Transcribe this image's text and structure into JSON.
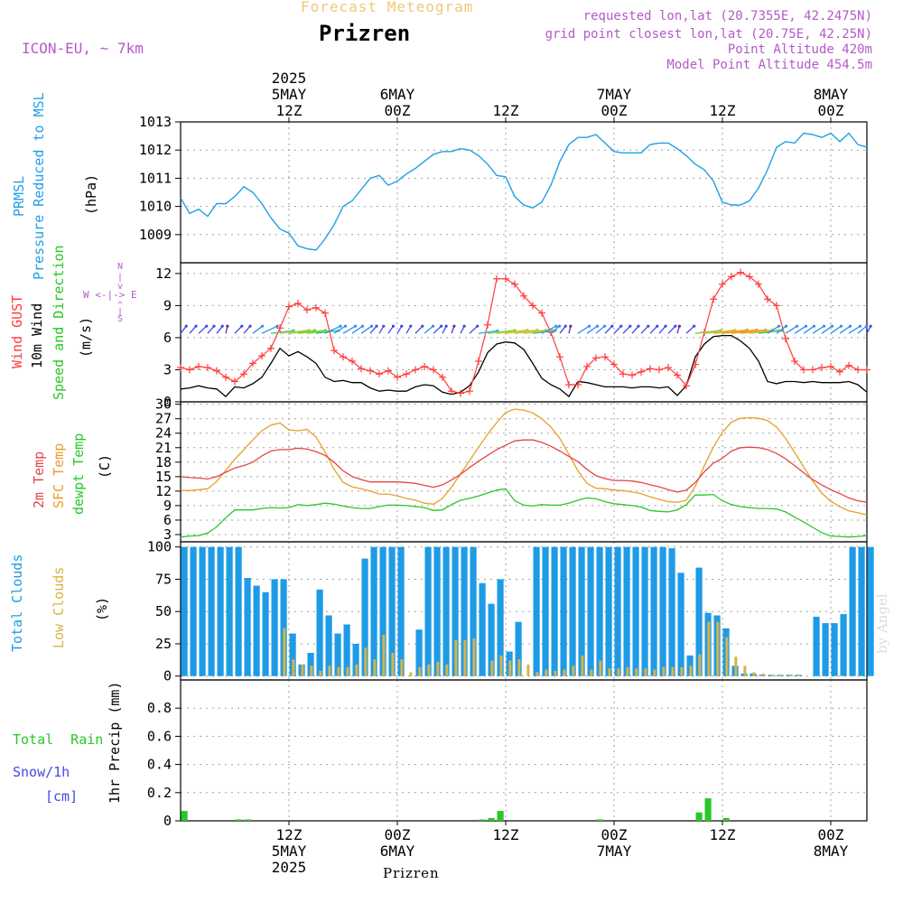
{
  "header": {
    "app_title": "Forecast Meteogram",
    "location": "Prizren",
    "model": "ICON-EU, ~ 7km",
    "requested": "requested lon,lat (20.7355E, 42.2475N)",
    "grid_point": "grid point closest lon,lat (20.75E, 42.25N)",
    "point_altitude": "Point Altitude 420m",
    "model_altitude": "Model Point Altitude 454.5m"
  },
  "footer": {
    "location": "Prizren",
    "watermark": "by Angel"
  },
  "time_axis": {
    "top_labels": [
      {
        "hour": 12,
        "lines": [
          "2025",
          "5MAY",
          "12Z"
        ]
      },
      {
        "hour": 24,
        "lines": [
          "6MAY",
          "00Z"
        ]
      },
      {
        "hour": 36,
        "lines": [
          "12Z"
        ]
      },
      {
        "hour": 48,
        "lines": [
          "7MAY",
          "00Z"
        ]
      },
      {
        "hour": 60,
        "lines": [
          "12Z"
        ]
      },
      {
        "hour": 72,
        "lines": [
          "8MAY",
          "00Z"
        ]
      }
    ],
    "bottom_labels": [
      {
        "hour": 12,
        "lines": [
          "12Z",
          "5MAY",
          "2025"
        ]
      },
      {
        "hour": 24,
        "lines": [
          "00Z",
          "6MAY"
        ]
      },
      {
        "hour": 36,
        "lines": [
          "12Z"
        ]
      },
      {
        "hour": 48,
        "lines": [
          "00Z",
          "7MAY"
        ]
      },
      {
        "hour": 60,
        "lines": [
          "12Z"
        ]
      },
      {
        "hour": 72,
        "lines": [
          "00Z",
          "8MAY"
        ]
      }
    ]
  },
  "panel_labels": {
    "pressure": {
      "name1": "PRMSL",
      "name2": "Pressure Reduced to MSL",
      "unit": "(hPa)"
    },
    "wind": {
      "gust": "Wind GUST",
      "wind10": "10m Wind",
      "speed_dir": "Speed and Direction",
      "unit": "(m/s)",
      "compass_n": "N",
      "compass_s": "S",
      "compass_we": "W <-|-> E"
    },
    "temp": {
      "t2m": "2m Temp",
      "sfc": "SFC Temp",
      "dewpt": "dewpt Temp",
      "unit": "(C)"
    },
    "clouds": {
      "total": "Total Clouds",
      "low": "Low Clouds",
      "unit": "(%)"
    },
    "precip": {
      "rain": "Total Rain",
      "snow": "Snow/1h",
      "snow_unit": "[cm]",
      "ylabel": "1hr Precip (mm)"
    }
  },
  "colors": {
    "pressure": "#1ea0e6",
    "gust": "#ff3c3c",
    "wind": "#000000",
    "t2m": "#e64646",
    "sfc": "#e6a028",
    "dewpt": "#28c828",
    "total_clouds": "#1e9be6",
    "low_clouds": "#d7b446",
    "rain": "#28c828",
    "snow": "#4646e6",
    "header_purple": "#b45ac8",
    "title_gold": "#f0c878"
  },
  "chart_data": [
    {
      "type": "line",
      "panel": "pressure",
      "ylim": [
        1008,
        1013
      ],
      "yticks": [
        1009,
        1010,
        1011,
        1012,
        1013
      ],
      "x_start_hour": 0,
      "x_end_hour": 76,
      "series": [
        {
          "values": [
            1010.3,
            1009.75,
            1009.9,
            1009.65,
            1010.1,
            1010.1,
            1010.35,
            1010.7,
            1010.5,
            1010.1,
            1009.6,
            1009.2,
            1009.05,
            1008.6,
            1008.5,
            1008.45,
            1008.85,
            1009.35,
            1010.0,
            1010.2,
            1010.6,
            1011.0,
            1011.1,
            1010.75,
            1010.9,
            1011.15,
            1011.35,
            1011.6,
            1011.85,
            1011.95,
            1011.95,
            1012.05,
            1012.0,
            1011.8,
            1011.5,
            1011.1,
            1011.05,
            1010.35,
            1010.05,
            1009.95,
            1010.15,
            1010.75,
            1011.6,
            1012.2,
            1012.45,
            1012.45,
            1012.55,
            1012.25,
            1011.95,
            1011.9,
            1011.9,
            1011.9,
            1012.2,
            1012.25,
            1012.25,
            1012.05,
            1011.8,
            1011.5,
            1011.3,
            1010.9,
            1010.15,
            1010.05,
            1010.05,
            1010.2,
            1010.65,
            1011.3,
            1012.1,
            1012.3,
            1012.25,
            1012.6,
            1012.55,
            1012.45,
            1012.6,
            1012.3,
            1012.6,
            1012.2,
            1012.1
          ]
        }
      ]
    },
    {
      "type": "line",
      "panel": "wind",
      "ylim": [
        0,
        13
      ],
      "yticks": [
        0,
        3,
        6,
        9,
        12
      ],
      "x_start_hour": 0,
      "x_end_hour": 76,
      "series": [
        {
          "name": "Wind GUST",
          "values": [
            3.2,
            3.0,
            3.3,
            3.2,
            2.9,
            2.3,
            1.9,
            2.6,
            3.6,
            4.3,
            5.0,
            6.9,
            8.9,
            9.2,
            8.6,
            8.8,
            8.3,
            4.8,
            4.2,
            3.8,
            3.1,
            2.9,
            2.6,
            2.9,
            2.3,
            2.6,
            3.0,
            3.3,
            3.0,
            2.3,
            1.0,
            0.8,
            1.0,
            3.8,
            7.2,
            11.5,
            11.5,
            11.0,
            9.9,
            9.0,
            8.3,
            6.5,
            4.2,
            1.6,
            1.6,
            3.3,
            4.1,
            4.2,
            3.5,
            2.6,
            2.5,
            2.8,
            3.1,
            3.0,
            3.2,
            2.5,
            1.5,
            3.5,
            6.5,
            9.6,
            11.0,
            11.7,
            12.1,
            11.7,
            11.0,
            9.6,
            9.0,
            5.9,
            3.8,
            3.0,
            3.0,
            3.2,
            3.3,
            2.8,
            3.4,
            3.0,
            3.0
          ]
        },
        {
          "name": "10m Wind",
          "values": [
            1.2,
            1.3,
            1.5,
            1.3,
            1.2,
            0.5,
            1.4,
            1.3,
            1.7,
            2.3,
            3.6,
            5.0,
            4.3,
            4.7,
            4.2,
            3.6,
            2.3,
            1.9,
            2.0,
            1.8,
            1.8,
            1.3,
            1.0,
            1.1,
            1.0,
            1.0,
            1.4,
            1.6,
            1.5,
            0.9,
            0.7,
            0.9,
            1.5,
            2.8,
            4.6,
            5.4,
            5.6,
            5.5,
            4.9,
            3.6,
            2.2,
            1.6,
            1.2,
            0.5,
            1.9,
            1.8,
            1.6,
            1.4,
            1.4,
            1.4,
            1.3,
            1.4,
            1.4,
            1.3,
            1.4,
            0.6,
            1.5,
            4.2,
            5.4,
            6.1,
            6.2,
            6.2,
            5.7,
            5.0,
            3.8,
            1.9,
            1.7,
            1.9,
            1.9,
            1.8,
            1.9,
            1.8,
            1.8,
            1.8,
            1.9,
            1.6,
            0.9
          ]
        }
      ]
    },
    {
      "type": "line",
      "panel": "temperature",
      "ylim": [
        1.5,
        30.5
      ],
      "yticks": [
        3,
        6,
        9,
        12,
        15,
        18,
        21,
        24,
        27,
        30
      ],
      "x_start_hour": 0,
      "x_end_hour": 76,
      "series": [
        {
          "name": "2m Temp",
          "values": [
            15.0,
            14.8,
            14.7,
            14.5,
            15.0,
            15.9,
            16.8,
            17.3,
            18.0,
            19.3,
            20.3,
            20.6,
            20.6,
            20.9,
            20.7,
            20.2,
            19.4,
            18.0,
            16.2,
            15.0,
            14.4,
            13.9,
            13.9,
            13.9,
            13.9,
            13.8,
            13.6,
            13.2,
            12.8,
            13.3,
            14.3,
            15.5,
            16.9,
            18.2,
            19.4,
            20.6,
            21.5,
            22.4,
            22.6,
            22.6,
            22.1,
            21.3,
            20.3,
            19.2,
            18.1,
            16.5,
            15.2,
            14.6,
            14.2,
            14.2,
            14.1,
            13.8,
            13.3,
            12.9,
            12.3,
            11.8,
            12.2,
            13.8,
            16.0,
            17.8,
            18.8,
            20.3,
            21.0,
            21.1,
            21.0,
            20.6,
            19.8,
            18.7,
            17.3,
            15.8,
            14.4,
            13.3,
            12.3,
            11.5,
            10.6,
            10.0,
            9.7
          ]
        },
        {
          "name": "SFC Temp",
          "values": [
            12.2,
            12.1,
            12.3,
            12.5,
            14.0,
            16.3,
            18.6,
            20.6,
            22.6,
            24.5,
            25.7,
            26.1,
            24.7,
            24.5,
            24.8,
            23.2,
            20.1,
            16.5,
            13.8,
            12.9,
            12.5,
            12.0,
            11.4,
            11.4,
            11.0,
            10.5,
            10.1,
            9.5,
            9.3,
            10.5,
            12.8,
            15.6,
            18.3,
            21.1,
            23.8,
            26.2,
            28.3,
            29.0,
            28.8,
            28.2,
            27.0,
            25.3,
            22.9,
            19.6,
            16.2,
            13.6,
            12.6,
            12.5,
            12.2,
            12.1,
            11.8,
            11.5,
            10.8,
            10.3,
            9.8,
            9.7,
            10.1,
            13.0,
            17.3,
            21.1,
            24.2,
            26.3,
            27.1,
            27.2,
            27.1,
            26.6,
            25.3,
            22.9,
            20.0,
            17.0,
            14.1,
            11.6,
            9.9,
            8.8,
            7.9,
            7.5,
            7.1
          ]
        },
        {
          "name": "dewpt Temp",
          "values": [
            2.5,
            2.7,
            2.8,
            3.3,
            4.6,
            6.5,
            8.1,
            8.1,
            8.1,
            8.4,
            8.6,
            8.5,
            8.6,
            9.2,
            9.0,
            9.2,
            9.5,
            9.3,
            8.9,
            8.6,
            8.4,
            8.4,
            8.8,
            9.1,
            9.1,
            9.0,
            8.8,
            8.6,
            8.0,
            8.1,
            9.2,
            10.1,
            10.5,
            11.0,
            11.6,
            12.2,
            12.5,
            10.0,
            9.1,
            8.9,
            9.2,
            9.1,
            9.1,
            9.5,
            10.1,
            10.6,
            10.4,
            9.8,
            9.4,
            9.2,
            9.0,
            8.7,
            8.0,
            7.8,
            7.7,
            8.1,
            9.2,
            11.2,
            11.2,
            11.3,
            10.0,
            9.2,
            8.8,
            8.6,
            8.4,
            8.4,
            8.3,
            7.7,
            6.6,
            5.6,
            4.5,
            3.4,
            2.7,
            2.6,
            2.5,
            2.6,
            2.8
          ]
        }
      ]
    },
    {
      "type": "bar",
      "panel": "clouds",
      "ylim": [
        -3,
        104
      ],
      "yticks": [
        0,
        25,
        50,
        75,
        100
      ],
      "x_start_hour": 0,
      "x_end_hour": 76,
      "series": [
        {
          "name": "Total Clouds",
          "values": [
            100,
            100,
            100,
            100,
            100,
            100,
            100,
            76,
            70,
            65,
            75,
            75,
            33,
            9,
            18,
            67,
            47,
            33,
            40,
            25,
            91,
            100,
            100,
            100,
            100,
            0,
            36,
            100,
            100,
            100,
            100,
            100,
            100,
            72,
            56,
            75,
            19,
            42,
            0,
            100,
            100,
            100,
            100,
            100,
            100,
            100,
            100,
            100,
            100,
            100,
            100,
            100,
            100,
            100,
            99,
            80,
            16,
            84,
            49,
            47,
            37,
            8,
            2,
            2,
            1,
            1,
            1,
            1,
            1,
            0,
            46,
            41,
            41,
            48,
            100,
            100,
            100
          ]
        },
        {
          "name": "Low Clouds",
          "values": [
            0,
            0,
            0,
            0,
            0,
            0,
            0,
            0,
            0,
            0,
            0,
            37,
            13,
            9,
            8,
            4,
            8,
            7,
            7,
            9,
            22,
            13,
            32,
            18,
            13,
            3,
            7,
            9,
            11,
            9,
            28,
            28,
            29,
            0,
            12,
            16,
            12,
            13,
            9,
            3,
            5,
            4,
            5,
            8,
            16,
            5,
            12,
            6,
            6,
            7,
            6,
            6,
            5,
            7,
            7,
            7,
            8,
            17,
            42,
            42,
            30,
            15,
            8,
            3,
            2,
            1,
            1,
            1,
            1,
            0,
            0,
            0,
            0,
            0,
            0,
            0,
            0
          ]
        }
      ]
    },
    {
      "type": "bar",
      "panel": "precip",
      "ylim": [
        0,
        1.0
      ],
      "yticks": [
        0,
        0.2,
        0.4,
        0.6,
        0.8
      ],
      "x_start_hour": 0,
      "x_end_hour": 76,
      "series": [
        {
          "name": "Total Rain",
          "values": [
            0.07,
            0,
            0,
            0,
            0,
            0,
            0.01,
            0.01,
            0,
            0,
            0,
            0,
            0,
            0,
            0,
            0,
            0,
            0,
            0,
            0,
            0,
            0,
            0,
            0,
            0,
            0,
            0,
            0,
            0,
            0,
            0,
            0,
            0,
            0.01,
            0.02,
            0.07,
            0,
            0,
            0,
            0,
            0,
            0,
            0,
            0,
            0,
            0,
            0.01,
            0,
            0,
            0,
            0,
            0,
            0,
            0,
            0,
            0,
            0,
            0.06,
            0.16,
            0,
            0.02,
            0,
            0,
            0,
            0,
            0,
            0,
            0,
            0,
            0,
            0,
            0,
            0,
            0,
            0,
            0,
            0
          ]
        },
        {
          "name": "Snow/1h",
          "values": [
            0,
            0,
            0,
            0,
            0,
            0,
            0,
            0,
            0,
            0,
            0,
            0,
            0,
            0,
            0,
            0,
            0,
            0,
            0,
            0,
            0,
            0,
            0,
            0,
            0,
            0,
            0,
            0,
            0,
            0,
            0,
            0,
            0,
            0,
            0,
            0,
            0,
            0,
            0,
            0,
            0,
            0,
            0,
            0,
            0,
            0,
            0,
            0,
            0,
            0,
            0,
            0,
            0,
            0,
            0,
            0,
            0,
            0,
            0,
            0,
            0,
            0,
            0,
            0,
            0,
            0,
            0,
            0,
            0,
            0,
            0,
            0,
            0,
            0,
            0,
            0,
            0
          ]
        }
      ]
    }
  ]
}
